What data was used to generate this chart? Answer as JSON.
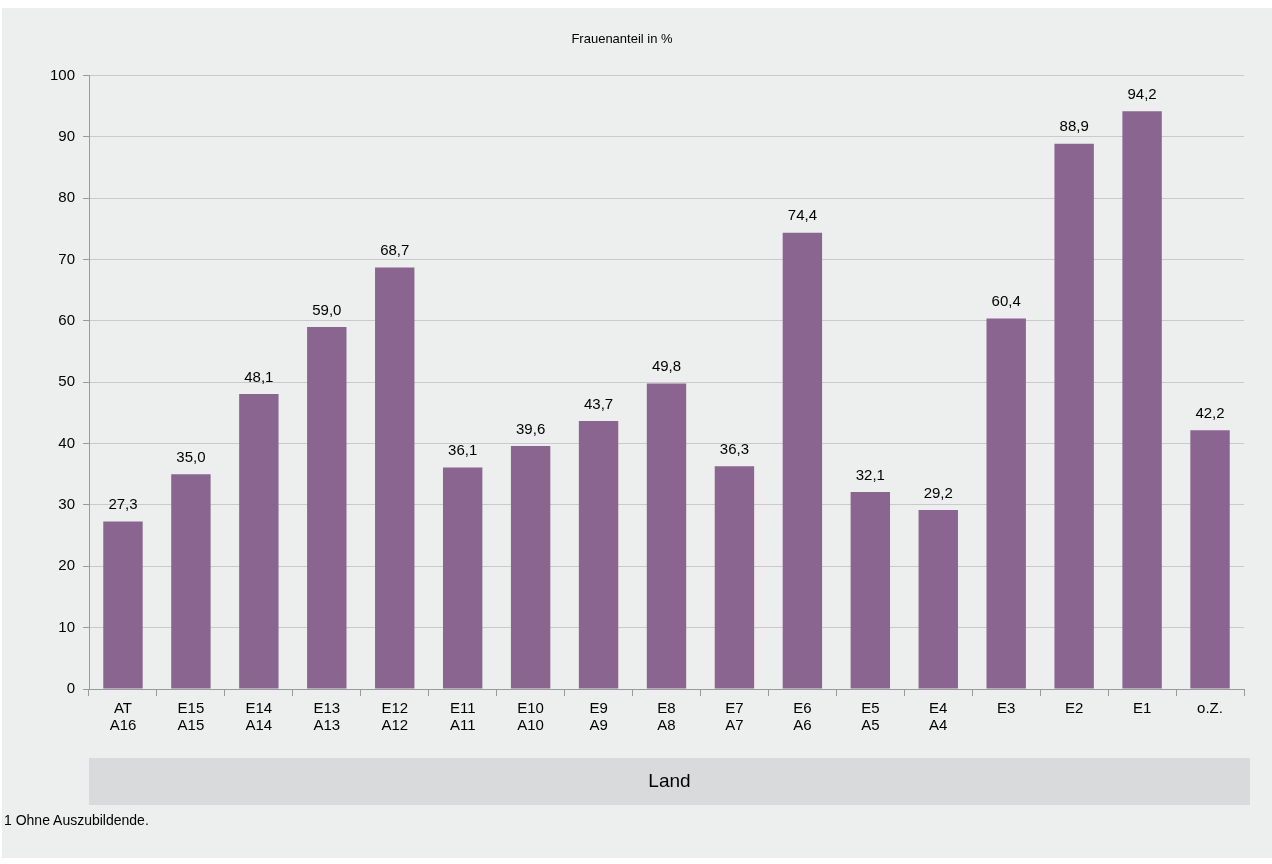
{
  "chart_data": {
    "type": "bar",
    "title": "Frauenanteil in %",
    "xlabel": "Land",
    "categories": [
      "AT\nA16",
      "E15\nA15",
      "E14\nA14",
      "E13\nA13",
      "E12\nA12",
      "E11\nA11",
      "E10\nA10",
      "E9\nA9",
      "E8\nA8",
      "E7\nA7",
      "E6\nA6",
      "E5\nA5",
      "E4\nA4",
      "E3",
      "E2",
      "E1",
      "o.Z."
    ],
    "values": [
      27.3,
      35.0,
      48.1,
      59.0,
      68.7,
      36.1,
      39.6,
      43.7,
      49.8,
      36.3,
      74.4,
      32.1,
      29.2,
      60.4,
      88.9,
      94.2,
      42.2
    ],
    "value_labels": [
      "27,3",
      "35,0",
      "48,1",
      "59,0",
      "68,7",
      "36,1",
      "39,6",
      "43,7",
      "49,8",
      "36,3",
      "74,4",
      "32,1",
      "29,2",
      "60,4",
      "88,9",
      "94,2",
      "42,2"
    ],
    "color": "#8a6590",
    "ylim": [
      0,
      100
    ],
    "yticks": [
      0,
      10,
      20,
      30,
      40,
      50,
      60,
      70,
      80,
      90,
      100
    ],
    "grid": "y",
    "annotations": [
      "1 Ohne Auszubildende."
    ]
  }
}
